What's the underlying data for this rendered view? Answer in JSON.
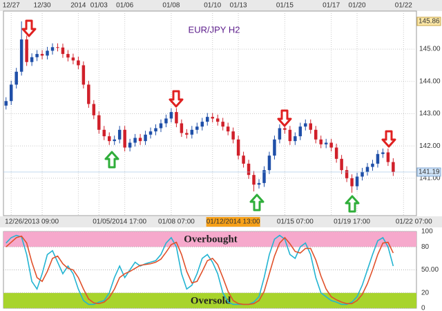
{
  "chart_data": [
    {
      "type": "candlestick",
      "title": "EUR/JPY  H2",
      "categories": [
        null,
        "12/27",
        null,
        null,
        null,
        null,
        null,
        "12/30",
        null,
        null,
        null,
        null,
        null,
        null,
        "2014",
        null,
        null,
        null,
        "01/03",
        null,
        null,
        null,
        null,
        "01/06",
        null,
        null,
        null,
        null,
        null,
        null,
        null,
        null,
        "01/08",
        null,
        null,
        null,
        null,
        null,
        null,
        null,
        "01/10",
        null,
        null,
        null,
        null,
        "01/13",
        null,
        null,
        null,
        null,
        null,
        null,
        null,
        null,
        "01/15",
        null,
        null,
        null,
        null,
        null,
        null,
        null,
        null,
        "01/17",
        null,
        null,
        null,
        null,
        "01/20",
        null,
        null,
        null,
        null,
        null,
        null,
        null,
        null,
        "01/22",
        null,
        null
      ],
      "bottom_labels": [
        null,
        null,
        null,
        null,
        null,
        "12/26/2013 09:00",
        null,
        null,
        null,
        null,
        null,
        null,
        null,
        null,
        null,
        null,
        null,
        null,
        null,
        null,
        null,
        null,
        "01/05/2014 17:00",
        null,
        null,
        null,
        null,
        null,
        null,
        null,
        null,
        null,
        null,
        "01/08 07:00",
        null,
        null,
        null,
        null,
        null,
        null,
        null,
        null,
        null,
        null,
        "01/12/2014 13:00",
        null,
        null,
        null,
        null,
        null,
        null,
        null,
        null,
        null,
        null,
        null,
        "01/15 07:00",
        null,
        null,
        null,
        null,
        null,
        null,
        null,
        null,
        null,
        null,
        "01/19 17:00",
        null,
        null,
        null,
        null,
        null,
        null,
        null,
        null,
        null,
        null,
        null,
        "01/22 07:00"
      ],
      "open": [
        143.25,
        143.39,
        143.9,
        144.3,
        145.3,
        144.6,
        144.75,
        144.85,
        144.8,
        144.95,
        145.06,
        145.05,
        144.85,
        144.74,
        144.65,
        144.5,
        143.9,
        143.3,
        142.95,
        142.5,
        142.3,
        142.15,
        142.2,
        142.5,
        141.95,
        142.1,
        142.25,
        142.15,
        142.35,
        142.45,
        142.55,
        142.7,
        142.85,
        143.05,
        142.7,
        142.4,
        142.35,
        142.5,
        142.6,
        142.75,
        142.9,
        142.85,
        142.75,
        142.6,
        142.45,
        142.2,
        141.7,
        141.45,
        141.1,
        140.8,
        140.85,
        141.25,
        141.7,
        142.2,
        142.55,
        142.5,
        142.15,
        142.3,
        142.6,
        142.7,
        142.5,
        142.2,
        142.05,
        142.1,
        141.95,
        141.6,
        141.25,
        141.0,
        140.75,
        141.05,
        141.2,
        141.35,
        141.45,
        141.75,
        141.8,
        141.5,
        null,
        null,
        null,
        null
      ],
      "high": [
        143.51,
        144.02,
        144.42,
        145.86,
        145.42,
        144.87,
        144.97,
        144.97,
        145.07,
        145.18,
        145.18,
        145.17,
        144.97,
        144.86,
        144.77,
        144.62,
        144.02,
        143.42,
        143.07,
        142.62,
        142.42,
        142.32,
        142.62,
        142.62,
        142.22,
        142.37,
        142.37,
        142.47,
        142.57,
        142.67,
        142.82,
        142.97,
        143.17,
        143.17,
        142.82,
        142.52,
        142.62,
        142.72,
        142.87,
        143.02,
        143.02,
        142.97,
        142.87,
        142.72,
        142.57,
        142.32,
        141.82,
        141.57,
        141.22,
        140.97,
        141.37,
        141.82,
        142.32,
        142.67,
        142.67,
        142.62,
        142.42,
        142.72,
        142.82,
        142.82,
        142.62,
        142.32,
        142.22,
        142.22,
        142.07,
        141.72,
        141.37,
        141.12,
        141.17,
        141.32,
        141.47,
        141.57,
        141.87,
        141.92,
        141.92,
        141.62,
        null,
        null,
        null,
        null
      ],
      "low": [
        143.13,
        143.27,
        143.78,
        144.18,
        144.48,
        144.48,
        144.63,
        144.68,
        144.68,
        144.83,
        144.93,
        144.73,
        144.62,
        144.53,
        144.38,
        143.78,
        143.18,
        142.83,
        142.38,
        142.18,
        142.03,
        142.03,
        142.08,
        141.83,
        141.83,
        141.98,
        142.03,
        142.03,
        142.23,
        142.33,
        142.43,
        142.58,
        142.73,
        142.58,
        142.28,
        142.23,
        142.23,
        142.38,
        142.48,
        142.63,
        142.73,
        142.63,
        142.48,
        142.33,
        142.08,
        141.58,
        141.33,
        140.98,
        140.59,
        140.68,
        140.73,
        141.13,
        141.58,
        142.08,
        142.38,
        142.03,
        142.03,
        142.18,
        142.48,
        142.38,
        142.08,
        141.93,
        141.93,
        141.83,
        141.48,
        141.13,
        140.88,
        140.55,
        140.63,
        140.93,
        141.08,
        141.23,
        141.33,
        141.63,
        141.38,
        141.07,
        null,
        null,
        null,
        null
      ],
      "close": [
        143.39,
        143.9,
        144.3,
        145.3,
        144.6,
        144.75,
        144.85,
        144.8,
        144.95,
        145.06,
        145.05,
        144.85,
        144.74,
        144.65,
        144.5,
        143.9,
        143.3,
        142.95,
        142.5,
        142.3,
        142.15,
        142.2,
        142.5,
        141.95,
        142.1,
        142.25,
        142.15,
        142.35,
        142.45,
        142.55,
        142.7,
        142.85,
        143.05,
        142.7,
        142.4,
        142.35,
        142.5,
        142.6,
        142.75,
        142.9,
        142.85,
        142.75,
        142.6,
        142.45,
        142.2,
        141.7,
        141.45,
        141.1,
        140.8,
        140.85,
        141.25,
        141.7,
        142.2,
        142.55,
        142.5,
        142.15,
        142.3,
        142.6,
        142.7,
        142.5,
        142.2,
        142.05,
        142.1,
        141.95,
        141.6,
        141.25,
        141.0,
        140.75,
        141.05,
        141.2,
        141.35,
        141.45,
        141.75,
        141.8,
        141.5,
        141.19,
        null,
        null,
        null,
        null
      ],
      "up_color": "#1f4fa8",
      "down_color": "#d0202a",
      "ylim": [
        139.84,
        146.18
      ],
      "yticks": [
        {
          "value": 141,
          "label": "141.00"
        },
        {
          "value": 142,
          "label": "142.00"
        },
        {
          "value": 143,
          "label": "143.00"
        },
        {
          "value": 144,
          "label": "144.00"
        },
        {
          "value": 145,
          "label": "145.00"
        }
      ],
      "high_label": 145.86,
      "last_price": 141.19,
      "grid": true
    },
    {
      "type": "line",
      "series": [
        {
          "color": "#22b4d2",
          "values": [
            85,
            92,
            95,
            93,
            70,
            35,
            25,
            45,
            70,
            75,
            60,
            45,
            55,
            45,
            25,
            10,
            5,
            5,
            8,
            10,
            20,
            40,
            55,
            40,
            50,
            60,
            55,
            58,
            60,
            62,
            70,
            85,
            92,
            80,
            45,
            25,
            30,
            45,
            65,
            70,
            60,
            45,
            20,
            8,
            5,
            5,
            5,
            5,
            8,
            15,
            40,
            70,
            90,
            95,
            90,
            70,
            65,
            80,
            85,
            70,
            40,
            20,
            15,
            10,
            8,
            5,
            5,
            8,
            15,
            30,
            50,
            70,
            88,
            92,
            80,
            55,
            null,
            null,
            null,
            null
          ]
        },
        {
          "color": "#e0502a",
          "values": [
            80,
            86,
            92,
            94,
            85,
            60,
            40,
            35,
            48,
            65,
            68,
            58,
            52,
            50,
            40,
            25,
            12,
            7,
            6,
            8,
            14,
            25,
            40,
            45,
            48,
            52,
            56,
            57,
            58,
            60,
            64,
            73,
            83,
            86,
            70,
            48,
            33,
            35,
            48,
            62,
            65,
            57,
            40,
            22,
            10,
            6,
            5,
            5,
            6,
            10,
            22,
            45,
            68,
            85,
            92,
            84,
            74,
            72,
            78,
            78,
            63,
            42,
            25,
            15,
            11,
            8,
            6,
            6,
            10,
            18,
            32,
            50,
            70,
            85,
            86,
            72,
            null,
            null,
            null,
            null
          ]
        }
      ],
      "bands": [
        {
          "label": "Overbought",
          "from": 80,
          "to": 100,
          "color": "#f6a9cc"
        },
        {
          "label": "Oversold",
          "from": 0,
          "to": 20,
          "color": "#a8d42c"
        }
      ],
      "ylim": [
        0,
        100
      ],
      "yticks": [
        0,
        20,
        {
          "value": 50,
          "label": "50.00"
        },
        80,
        100
      ]
    }
  ]
}
